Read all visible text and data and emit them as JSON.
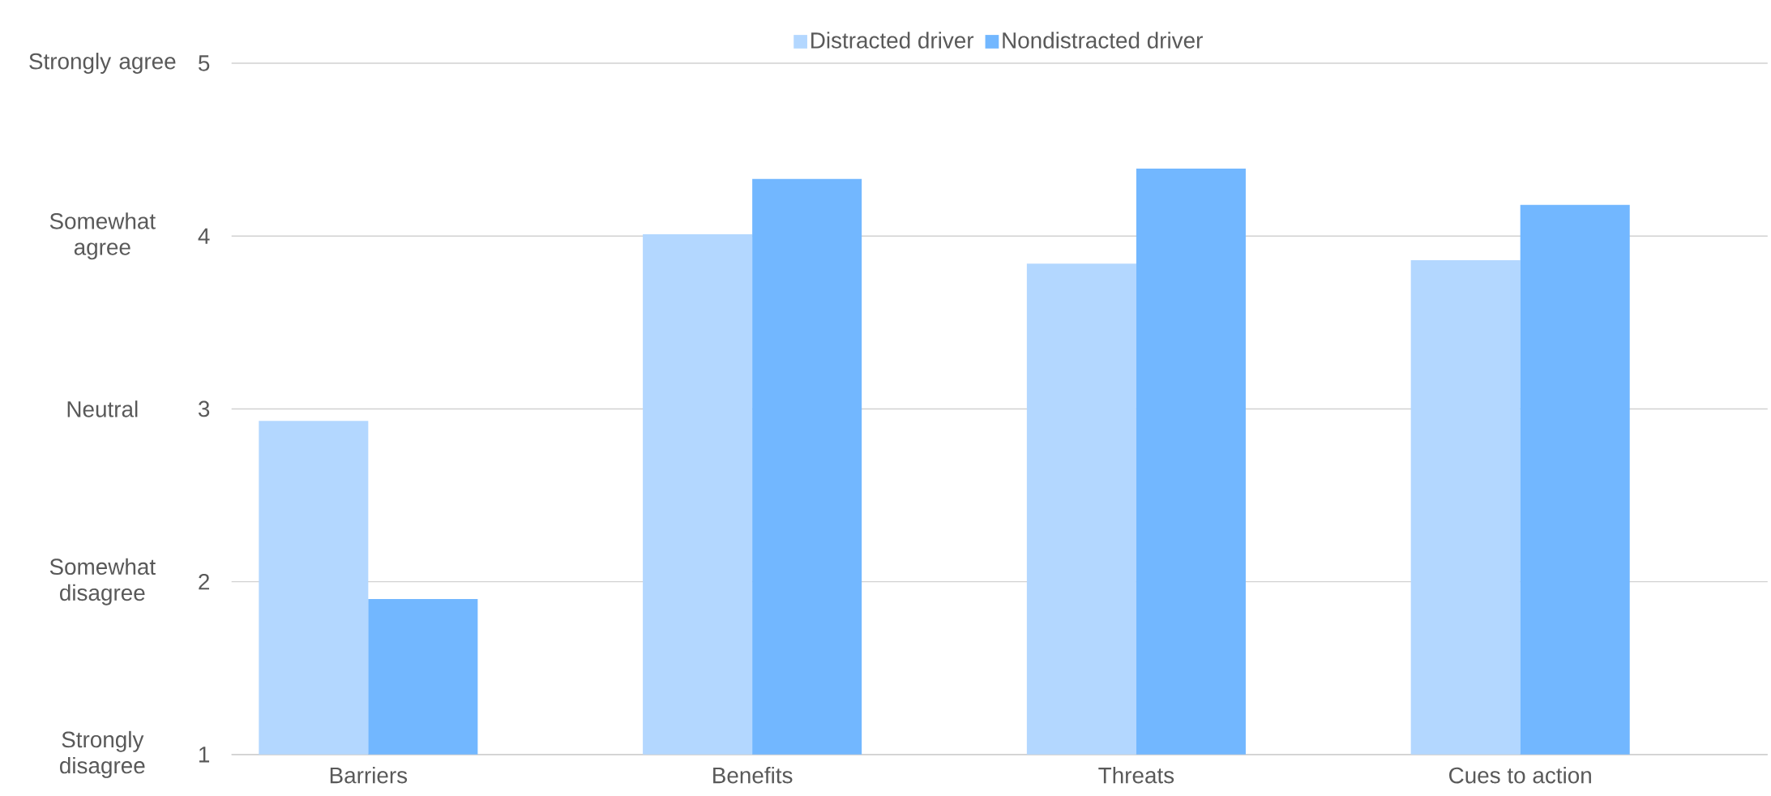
{
  "chart_data": {
    "type": "bar",
    "categories": [
      "Barriers",
      "Benefits",
      "Threats",
      "Cues to action"
    ],
    "series": [
      {
        "name": "Distracted driver",
        "color": "#b3d7ff",
        "values": [
          2.93,
          4.01,
          3.84,
          3.86
        ]
      },
      {
        "name": "Nondistracted driver",
        "color": "#72b7ff",
        "values": [
          1.9,
          4.33,
          4.39,
          4.18
        ]
      }
    ],
    "ylim": [
      1,
      5
    ],
    "yticks": [
      1,
      2,
      3,
      4,
      5
    ],
    "grid": "y",
    "legend": "top",
    "annotations": [
      "Strongly disagree",
      "Somewhat disagree",
      "Neutral",
      "Somewhat agree",
      "Strongly agree"
    ]
  }
}
